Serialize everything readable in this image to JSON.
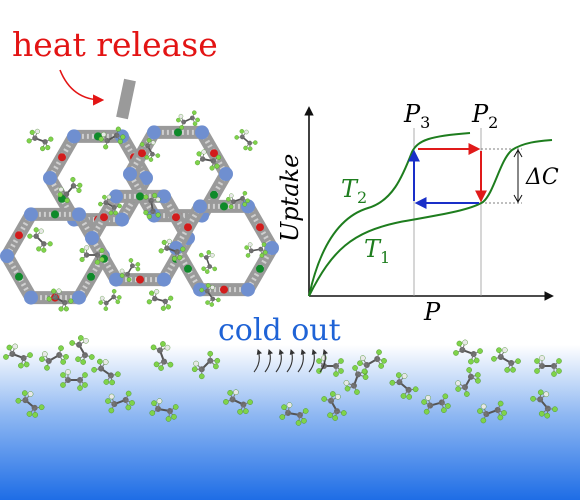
{
  "labels": {
    "heat": "heat release",
    "cold": "cold out",
    "uptake": "Uptake",
    "p_axis": "P",
    "p3": "P",
    "p3_sub": "3",
    "p2": "P",
    "p2_sub": "2",
    "t2": "T",
    "t2_sub": "2",
    "t1": "T",
    "t1_sub": "1",
    "delta_c": "ΔC"
  },
  "colors": {
    "heat_text": "#e31414",
    "cold_text": "#1f63d6",
    "curve": "#1e7d1e",
    "cycle_red": "#e01a1a",
    "cycle_blue": "#1a2fc8",
    "framework": "#9a9a9a",
    "fluorine": "#7fd34a",
    "carbon": "#6b6b6b",
    "liquid_top": "#ffffff",
    "liquid_bottom": "#1f6fe8"
  },
  "icons": [
    "heat-arrow-icon",
    "rising-vapor-icon",
    "refrigerant-molecule-icon",
    "mof-framework-icon"
  ]
}
